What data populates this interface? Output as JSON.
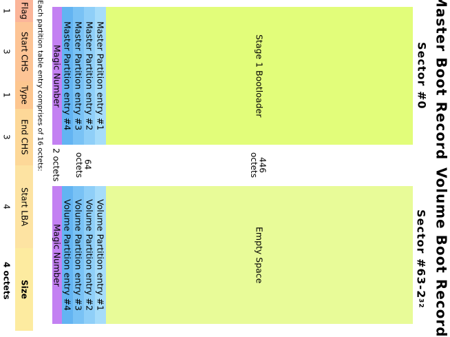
{
  "mbr": {
    "title": "Master Boot Record",
    "sector": "Sector  #0",
    "bootloader": "Stage 1 Bootloader",
    "size_bootloader": "446 octets",
    "entries": [
      "Master Partition entry #1",
      "Master Partition entry #2",
      "Master Partition entry #3",
      "Master Partition entry #4"
    ],
    "size_entries": "64 octets",
    "magic": "Magic Number",
    "size_magic": "2 octets"
  },
  "vbr": {
    "title": "Volume Boot Record",
    "sector_prefix": "Sector  #63-2",
    "sector_exp": "32",
    "body": "Empty Space",
    "entries": [
      "Volume Partition entry #1",
      "Volume Partition entry #2",
      "Volume Partition entry #3",
      "Volume Partition entry #4"
    ],
    "magic": "Magic Number"
  },
  "entry_note": "Each partition table entry comprises of 16 octets:",
  "fields": [
    {
      "label": "Flag",
      "octets": "1"
    },
    {
      "label": "Start CHS",
      "octets": "3"
    },
    {
      "label": "Type",
      "octets": "1"
    },
    {
      "label": "End CHS",
      "octets": "3"
    },
    {
      "label": "Start LBA",
      "octets": "4"
    },
    {
      "label": "Size",
      "octets": "4  octets"
    }
  ],
  "colors": {
    "bootloader": "#e2fd7a",
    "empty_space": "#e8fb98",
    "entry_1": "#a6dcfa",
    "entry_2": "#8fcff8",
    "entry_3": "#79c2f5",
    "entry_4": "#63b4f2",
    "magic": "#c381f2",
    "flag": "#fbb599",
    "start_chs": "#fdc495",
    "type": "#fdc68f",
    "end_chs": "#fdd898",
    "start_lba": "#fde3a2",
    "size": "#fdeba0"
  }
}
